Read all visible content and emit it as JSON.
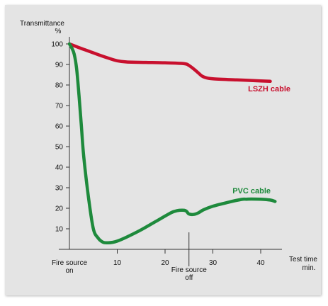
{
  "chart_data": {
    "type": "line",
    "ylabel": "Transmittance",
    "yunit": "%",
    "xlabel": "Test time",
    "xunit": "min.",
    "xlim": [
      0,
      45
    ],
    "ylim": [
      0,
      105
    ],
    "xticks": [
      10,
      20,
      30,
      40
    ],
    "yticks": [
      10,
      20,
      30,
      40,
      50,
      60,
      70,
      80,
      90,
      100
    ],
    "grid": false,
    "annotations": [
      {
        "x": 0,
        "line1": "Fire source",
        "line2": "on"
      },
      {
        "x": 25,
        "line1": "Fire source",
        "line2": "off"
      }
    ],
    "series": [
      {
        "name": "LSZH cable",
        "color": "#c8102e",
        "x": [
          0,
          2,
          4,
          6,
          8,
          10,
          12,
          16,
          20,
          24,
          25,
          26,
          27,
          28,
          30,
          35,
          40,
          42
        ],
        "y": [
          100,
          98.2,
          96.5,
          94.8,
          93.2,
          91.8,
          91.2,
          91.0,
          90.8,
          90.4,
          89.5,
          87.8,
          85.8,
          84.0,
          83.0,
          82.5,
          82.0,
          81.8
        ]
      },
      {
        "name": "PVC cable",
        "color": "#1e8a3c",
        "x": [
          0,
          0.5,
          1,
          1.5,
          2,
          2.5,
          3,
          4,
          5,
          6,
          7,
          8,
          9,
          10,
          12,
          15,
          18,
          21,
          22,
          23,
          24,
          24.5,
          25,
          26,
          27,
          28,
          30,
          33,
          36,
          37,
          38,
          40,
          42,
          43
        ],
        "y": [
          100,
          98,
          95,
          88,
          75,
          60,
          45,
          25,
          10,
          5.5,
          3.5,
          3.2,
          3.4,
          4.0,
          6,
          9.5,
          13.5,
          17.5,
          18.5,
          19.0,
          19.0,
          18.5,
          17.2,
          17.0,
          17.8,
          19.2,
          21,
          22.8,
          24.3,
          24.4,
          24.5,
          24.4,
          24,
          23.3
        ]
      }
    ]
  }
}
